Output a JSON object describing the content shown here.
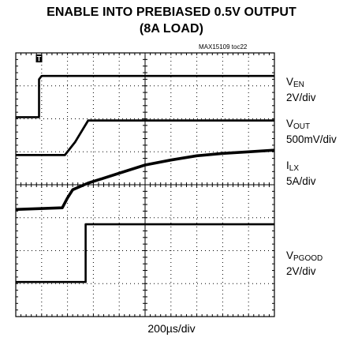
{
  "title_line1": "ENABLE INTO PREBIASED 0.5V OUTPUT",
  "title_line2": "(8A LOAD)",
  "figure_id": "MAX15109 toc22",
  "trigger_marker": "T",
  "channels": [
    {
      "main": "V",
      "sub": "EN",
      "scale": "2V/div"
    },
    {
      "main": "V",
      "sub": "OUT",
      "scale": "500mV/div"
    },
    {
      "main": "I",
      "sub": "LX",
      "scale": "5A/div"
    },
    {
      "main": "V",
      "sub": "PGOOD",
      "scale": "2V/div"
    }
  ],
  "time_scale": "200µs/div",
  "colors": {
    "trace": "#000000",
    "grid": "#000000",
    "background": "#ffffff"
  },
  "chart_data": {
    "type": "line",
    "title": "ENABLE INTO PREBIASED 0.5V OUTPUT (8A LOAD)",
    "xlabel": "200µs/div",
    "grid": true,
    "x_unit": "divisions",
    "xlim": [
      0,
      10
    ],
    "ylim_divisions": [
      0,
      8
    ],
    "series": [
      {
        "name": "VEN",
        "scale": "2V/div",
        "x": [
          0,
          0.9,
          0.9,
          1.0,
          10
        ],
        "y": [
          6.05,
          6.05,
          7.2,
          7.3,
          7.3
        ]
      },
      {
        "name": "VOUT",
        "scale": "500mV/div",
        "x": [
          0,
          1.9,
          2.3,
          2.8,
          10
        ],
        "y": [
          4.9,
          4.9,
          5.3,
          5.95,
          5.95
        ]
      },
      {
        "name": "ILX",
        "scale": "5A/div",
        "x": [
          0,
          1.8,
          2.0,
          2.2,
          2.8,
          4,
          5,
          6,
          7,
          8,
          9,
          10
        ],
        "y": [
          3.25,
          3.3,
          3.6,
          3.85,
          4.05,
          4.35,
          4.6,
          4.75,
          4.88,
          4.95,
          5.0,
          5.05
        ]
      },
      {
        "name": "VPGOOD",
        "scale": "2V/div",
        "x": [
          0,
          2.7,
          2.7,
          10
        ],
        "y": [
          1.05,
          1.05,
          2.8,
          2.8
        ]
      }
    ]
  }
}
